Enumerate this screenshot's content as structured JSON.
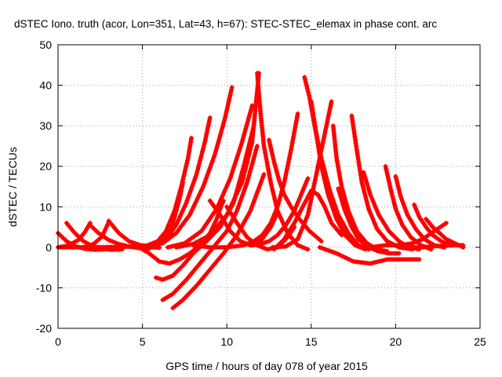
{
  "chart_data": {
    "type": "scatter",
    "title": "dSTEC Iono. truth (acor, Lon=351, Lat=43, h=67): STEC-STEC_elemax in phase cont. arc",
    "xlabel": "GPS time / hours of day 078 of year 2015",
    "ylabel": "dSTEC  / TECUs",
    "xlim": [
      0,
      25
    ],
    "ylim": [
      -20,
      50
    ],
    "xticks": [
      0,
      5,
      10,
      15,
      20,
      25
    ],
    "yticks": [
      -20,
      -10,
      0,
      10,
      20,
      30,
      40,
      50
    ],
    "grid": true,
    "marker": "plus",
    "color": "#ff0000",
    "series": [
      {
        "x": [
          0.0,
          0.5,
          1.0,
          1.6,
          2.2,
          2.8,
          3.3
        ],
        "y": [
          3.5,
          1.5,
          0.3,
          -0.4,
          -0.6,
          -0.5,
          0.0
        ]
      },
      {
        "x": [
          0.5,
          1.0,
          1.5,
          2.0,
          2.6,
          3.2,
          3.8
        ],
        "y": [
          6.0,
          3.5,
          1.5,
          0.4,
          -0.3,
          -0.6,
          -0.5
        ]
      },
      {
        "x": [
          0.0,
          0.6,
          1.2,
          1.6,
          1.9
        ],
        "y": [
          0.0,
          0.4,
          1.8,
          3.8,
          6.0
        ]
      },
      {
        "x": [
          1.9,
          2.4,
          3.0,
          3.6,
          4.2,
          4.8,
          5.4
        ],
        "y": [
          5.5,
          3.5,
          1.8,
          0.8,
          0.2,
          -0.2,
          -0.3
        ]
      },
      {
        "x": [
          1.5,
          2.1,
          2.6,
          3.0
        ],
        "y": [
          0.0,
          0.8,
          2.6,
          6.2
        ]
      },
      {
        "x": [
          3.0,
          3.6,
          4.2,
          4.9,
          5.5,
          6.0
        ],
        "y": [
          6.5,
          3.5,
          1.5,
          0.5,
          0.0,
          -0.1
        ]
      },
      {
        "x": [
          0.0,
          2.0,
          4.0,
          5.5,
          6.2,
          6.8,
          7.2,
          7.4
        ],
        "y": [
          0.0,
          0.0,
          0.1,
          0.5,
          2.0,
          6.0,
          12.0,
          16.0
        ]
      },
      {
        "x": [
          4.5,
          5.2,
          5.9,
          6.4,
          6.9,
          7.3,
          7.7,
          7.9
        ],
        "y": [
          0.0,
          0.3,
          1.5,
          4.0,
          9.0,
          15.0,
          22.0,
          27.0
        ]
      },
      {
        "x": [
          5.2,
          5.8,
          6.4,
          7.0,
          7.6,
          8.2,
          8.7,
          9.0
        ],
        "y": [
          0.0,
          0.5,
          2.0,
          5.5,
          11.0,
          18.0,
          26.0,
          32.0
        ]
      },
      {
        "x": [
          5.5,
          6.2,
          7.0,
          7.8,
          8.6,
          9.3,
          9.9,
          10.3
        ],
        "y": [
          0.0,
          1.0,
          3.5,
          8.0,
          15.0,
          23.0,
          32.0,
          39.5
        ]
      },
      {
        "x": [
          6.5,
          7.5,
          8.5,
          9.4,
          10.2,
          10.9,
          11.5
        ],
        "y": [
          0.0,
          1.0,
          4.0,
          9.5,
          17.0,
          26.0,
          35.0
        ]
      },
      {
        "x": [
          7.0,
          8.0,
          9.0,
          10.0,
          10.9,
          11.5,
          11.9
        ],
        "y": [
          0.0,
          0.8,
          3.0,
          8.0,
          16.0,
          26.0,
          43.0
        ]
      },
      {
        "x": [
          5.8,
          6.2,
          6.8,
          7.4,
          8.0,
          8.8,
          9.6,
          10.4,
          11.0,
          11.6
        ],
        "y": [
          -7.5,
          -8.0,
          -7.0,
          -4.5,
          -1.5,
          1.5,
          5.0,
          11.0,
          20.0,
          30.0
        ]
      },
      {
        "x": [
          6.2,
          6.8,
          7.6,
          8.4,
          9.2,
          10.0,
          10.6,
          11.2,
          11.8
        ],
        "y": [
          -13.0,
          -11.5,
          -8.0,
          -4.0,
          0.0,
          4.0,
          9.0,
          16.0,
          25.0
        ]
      },
      {
        "x": [
          6.8,
          7.4,
          8.2,
          9.0,
          9.8,
          10.6,
          11.4,
          12.2
        ],
        "y": [
          -15.0,
          -13.0,
          -9.5,
          -5.5,
          -1.5,
          3.0,
          9.0,
          18.0
        ]
      },
      {
        "x": [
          4.8,
          5.4,
          6.0,
          6.6,
          7.2,
          7.8,
          8.4,
          9.0,
          9.4,
          9.6,
          9.8
        ],
        "y": [
          0.0,
          -1.5,
          -3.5,
          -4.0,
          -3.0,
          -1.5,
          0.5,
          3.5,
          7.0,
          9.5,
          11.5
        ]
      },
      {
        "x": [
          9.0,
          9.6,
          10.2,
          10.8,
          11.4,
          12.0,
          12.6,
          13.0
        ],
        "y": [
          11.5,
          8.0,
          4.0,
          1.5,
          0.5,
          1.5,
          5.0,
          8.5
        ]
      },
      {
        "x": [
          8.0,
          9.0,
          10.0,
          11.0,
          11.6,
          12.1,
          12.6,
          13.0,
          13.4,
          13.8,
          14.2
        ],
        "y": [
          0.5,
          0.0,
          0.0,
          0.5,
          1.5,
          3.0,
          6.0,
          10.0,
          16.0,
          24.0,
          33.0
        ]
      },
      {
        "x": [
          10.0,
          10.6,
          11.2,
          11.8,
          12.4,
          13.0,
          13.6,
          14.0
        ],
        "y": [
          10.0,
          6.0,
          2.5,
          0.5,
          -0.5,
          0.0,
          2.5,
          5.0
        ]
      },
      {
        "x": [
          11.5,
          12.0,
          12.5,
          13.0,
          13.5,
          14.0,
          14.4,
          14.8
        ],
        "y": [
          0.5,
          0.8,
          1.5,
          3.0,
          5.5,
          9.0,
          13.0,
          17.0
        ]
      },
      {
        "x": [
          11.8,
          12.0,
          12.2,
          12.6,
          13.0,
          13.6,
          14.2,
          14.8
        ],
        "y": [
          43.0,
          33.0,
          25.0,
          16.0,
          9.0,
          3.5,
          0.5,
          -0.5
        ]
      },
      {
        "x": [
          12.5,
          12.8,
          13.1,
          13.4,
          13.8,
          14.3,
          14.9,
          15.6
        ],
        "y": [
          26.5,
          21.0,
          16.5,
          13.0,
          10.0,
          7.0,
          4.0,
          1.5
        ]
      },
      {
        "x": [
          12.8,
          13.4,
          14.0,
          14.5,
          15.0,
          15.4,
          15.8,
          16.2,
          16.8
        ],
        "y": [
          -0.5,
          2.0,
          6.0,
          10.0,
          14.0,
          13.0,
          10.0,
          6.0,
          3.0
        ]
      },
      {
        "x": [
          12.7,
          13.5,
          14.2,
          14.8,
          15.3,
          15.8,
          16.2
        ],
        "y": [
          0.0,
          0.2,
          2.0,
          8.0,
          18.0,
          28.0,
          36.0
        ]
      },
      {
        "x": [
          14.6,
          14.9,
          15.2,
          15.6,
          16.1,
          16.6,
          17.2,
          17.8,
          18.4
        ],
        "y": [
          42.0,
          37.0,
          30.0,
          22.0,
          14.0,
          8.0,
          3.5,
          0.5,
          -0.5
        ]
      },
      {
        "x": [
          15.0,
          15.3,
          15.6,
          16.0,
          16.5,
          17.0,
          17.6,
          18.2
        ],
        "y": [
          36.0,
          28.0,
          20.0,
          13.0,
          7.0,
          3.0,
          0.5,
          -0.5
        ]
      },
      {
        "x": [
          16.3,
          16.5,
          16.8,
          17.2,
          17.7,
          18.3,
          18.9,
          19.5
        ],
        "y": [
          30.0,
          22.0,
          15.0,
          9.0,
          4.0,
          1.0,
          -0.5,
          -1.0
        ]
      },
      {
        "x": [
          16.6,
          17.0,
          17.4,
          17.8,
          18.4,
          19.0,
          19.6,
          20.2
        ],
        "y": [
          14.5,
          9.0,
          5.0,
          2.0,
          0.0,
          -1.0,
          -1.5,
          -1.5
        ]
      },
      {
        "x": [
          17.4,
          17.7,
          18.0,
          18.4,
          18.9,
          19.5,
          20.2,
          21.0
        ],
        "y": [
          32.5,
          24.0,
          16.0,
          9.5,
          4.5,
          1.5,
          0.0,
          -0.5
        ]
      },
      {
        "x": [
          18.1,
          18.5,
          19.0,
          19.6,
          20.2,
          20.8,
          21.4
        ],
        "y": [
          18.5,
          13.0,
          8.0,
          4.0,
          1.5,
          0.0,
          -0.5
        ]
      },
      {
        "x": [
          19.4,
          19.7,
          20.0,
          20.4,
          20.9,
          21.5,
          22.1
        ],
        "y": [
          20.0,
          14.5,
          9.5,
          5.5,
          2.5,
          0.5,
          -0.5
        ]
      },
      {
        "x": [
          20.0,
          20.3,
          20.7,
          21.2,
          21.7,
          22.3,
          22.9
        ],
        "y": [
          17.5,
          12.5,
          8.0,
          4.5,
          2.0,
          0.5,
          0.0
        ]
      },
      {
        "x": [
          21.1,
          21.4,
          21.8,
          22.2,
          22.7,
          23.2
        ],
        "y": [
          10.5,
          7.5,
          5.0,
          3.0,
          1.5,
          0.5
        ]
      },
      {
        "x": [
          21.8,
          22.2,
          22.6,
          23.0,
          23.5,
          24.0
        ],
        "y": [
          7.0,
          5.0,
          3.5,
          2.0,
          1.0,
          0.0
        ]
      },
      {
        "x": [
          15.5,
          16.5,
          17.5,
          18.5,
          19.5,
          20.5,
          21.4
        ],
        "y": [
          0.0,
          -1.5,
          -3.5,
          -4.0,
          -3.0,
          -3.0,
          -3.0
        ]
      },
      {
        "x": [
          18.5,
          19.4,
          20.3,
          21.0,
          21.6,
          22.3,
          23.0
        ],
        "y": [
          0.0,
          0.5,
          0.5,
          1.0,
          2.0,
          4.0,
          6.0
        ]
      },
      {
        "x": [
          20.5,
          21.5,
          22.5,
          23.5,
          24.0
        ],
        "y": [
          0.0,
          0.0,
          0.3,
          0.5,
          0.5
        ]
      }
    ]
  }
}
